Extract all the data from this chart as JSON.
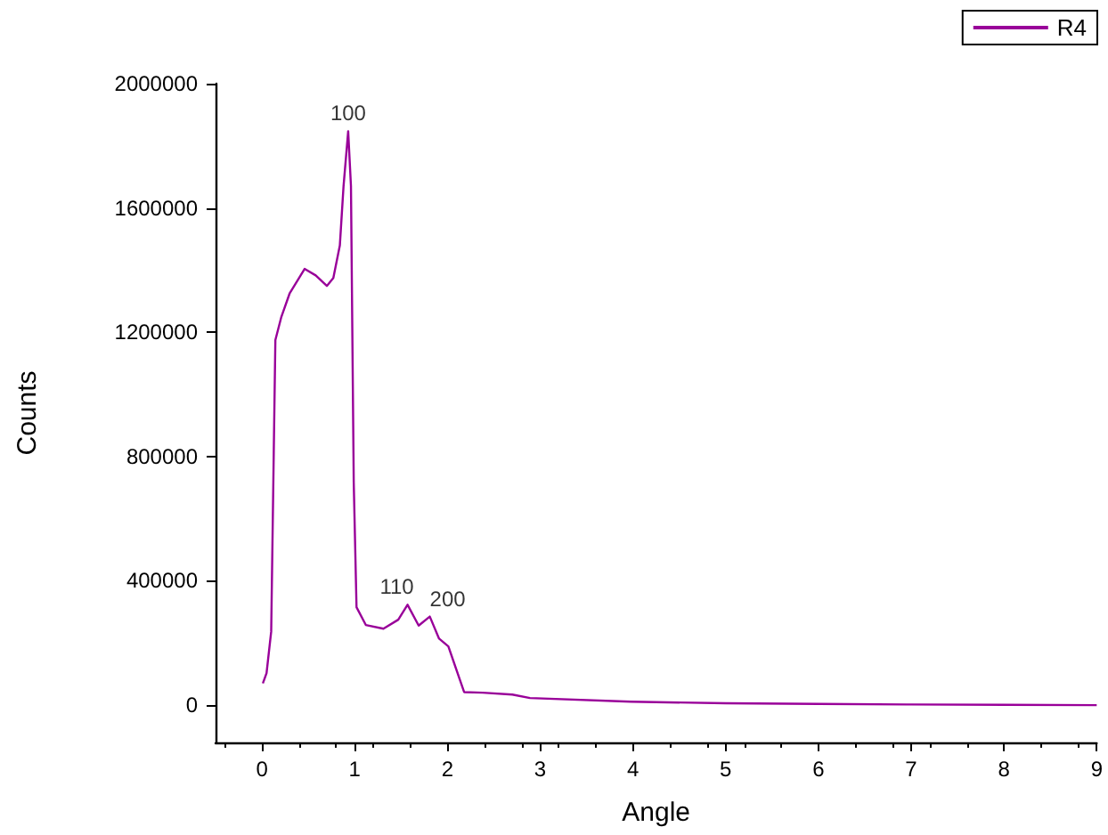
{
  "chart_data": {
    "type": "line",
    "xlabel": "Angle",
    "ylabel": "Counts",
    "x": [
      0.01,
      0.05,
      0.1,
      0.145,
      0.21,
      0.3,
      0.46,
      0.58,
      0.7,
      0.77,
      0.84,
      0.88,
      0.93,
      0.96,
      0.99,
      1.02,
      1.12,
      1.31,
      1.47,
      1.57,
      1.69,
      1.81,
      1.91,
      2.01,
      2.18,
      2.38,
      2.7,
      2.89,
      3.98,
      5,
      6,
      7,
      8,
      9
    ],
    "series": [
      {
        "name": "R4",
        "color": "#990099",
        "values": [
          70000,
          103000,
          237000,
          1175000,
          1250000,
          1326000,
          1404000,
          1383000,
          1349000,
          1375000,
          1479000,
          1670000,
          1847000,
          1670000,
          716000,
          315000,
          258000,
          246000,
          275000,
          323000,
          256000,
          285000,
          214000,
          189000,
          42000,
          40000,
          34000,
          23000,
          11000,
          6000,
          4000,
          2000,
          1000,
          0
        ]
      }
    ],
    "xlim": [
      -0.5,
      9
    ],
    "xticks": [
      0,
      1,
      2,
      3,
      4,
      5,
      6,
      7,
      8,
      9
    ],
    "ylim": [
      -120000,
      2000000
    ],
    "yticks": [
      0,
      400000,
      800000,
      1200000,
      1600000,
      2000000
    ],
    "annotations": [
      {
        "text": "100",
        "x": 0.93,
        "y": 1847000
      },
      {
        "text": "110",
        "x": 1.57,
        "y": 323000
      },
      {
        "text": "200",
        "x": 1.81,
        "y": 285000
      }
    ],
    "grid": false,
    "legend": "top right",
    "marker": "none",
    "line_style": "solid"
  }
}
